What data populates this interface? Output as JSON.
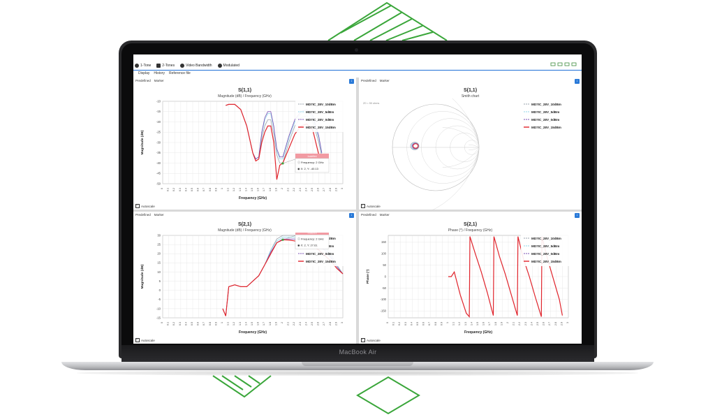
{
  "laptop": {
    "brand_label": "MacBook Air"
  },
  "colors": {
    "accent_green": "#3aa63a",
    "trace_red": "#e0232b",
    "trace_cyan": "#8fd5e8",
    "trace_purple": "#7a4fb3",
    "trace_gray": "#9aa3ad",
    "marker_pink": "#f29aa2"
  },
  "toolbar": {
    "buttons": [
      {
        "label": "1-Tone",
        "icon": "tone-icon"
      },
      {
        "label": "2-Tones",
        "icon": "tones-icon"
      },
      {
        "label": "Video Bandwidth",
        "icon": "video-bandwidth-icon"
      },
      {
        "label": "Modulated",
        "icon": "modulated-icon"
      }
    ]
  },
  "menu": {
    "items": [
      "Display",
      "History",
      "Reference file"
    ]
  },
  "panels": [
    {
      "tabs": [
        "Predefined",
        "Marker"
      ],
      "title": "S(1,1)",
      "subtitle": "Magnitude (dB) / Frequency (GHz)",
      "xlabel": "Frequency (GHz)",
      "ylabel": "Magnitude (dB)",
      "autoscale": "Autoscale",
      "marker": {
        "name": "Indéfini",
        "freq": "Frequency: 2 GHz",
        "xy": "X: 2, Y: -40.13"
      }
    },
    {
      "tabs": [
        "Predefined",
        "Marker"
      ],
      "title": "S(1,1)",
      "subtitle": "Smith chart",
      "corner_note": "Z0 = 50 ohms",
      "autoscale": "Autoscale"
    },
    {
      "tabs": [
        "Predefined",
        "Marker"
      ],
      "title": "S(2,1)",
      "subtitle": "Magnitude (dB) / Frequency (GHz)",
      "xlabel": "Frequency (GHz)",
      "ylabel": "Magnitude (dB)",
      "autoscale": "Autoscale",
      "marker": {
        "name": "Indéfini",
        "freq": "Frequency: 2 GHz",
        "xy": "X: 2, Y: 27.61"
      }
    },
    {
      "tabs": [
        "Predefined",
        "Marker"
      ],
      "title": "S(2,1)",
      "subtitle": "Phase (°) / Frequency (GHz)",
      "xlabel": "Frequency (GHz)",
      "ylabel": "Phase (°)",
      "autoscale": "Autoscale"
    }
  ],
  "legend": [
    "MD7IC_28V_10dBm",
    "MD7IC_28V_5dBm",
    "MD7IC_28V_0dBm",
    "MD7IC_28V_15dBm"
  ],
  "chart_data": [
    {
      "type": "line",
      "title": "S(1,1)",
      "subtitle": "Magnitude (dB) / Frequency (GHz)",
      "xlabel": "Frequency (GHz)",
      "ylabel": "Magnitude (dB)",
      "xlim": [
        0,
        3
      ],
      "ylim": [
        -50,
        -10
      ],
      "xticks": [
        0,
        0.1,
        0.2,
        0.3,
        0.4,
        0.5,
        0.6,
        0.7,
        0.8,
        0.9,
        1,
        1.1,
        1.2,
        1.3,
        1.4,
        1.5,
        1.6,
        1.7,
        1.8,
        1.9,
        2,
        2.1,
        2.2,
        2.3,
        2.4,
        2.5,
        2.6,
        2.7,
        2.8,
        2.9,
        3
      ],
      "yticks": [
        -10,
        -15,
        -20,
        -25,
        -30,
        -35,
        -40,
        -45,
        -50
      ],
      "legend_position": "top-right",
      "series": [
        {
          "name": "MD7IC_28V_10dBm",
          "x": [
            1.05,
            1.1,
            1.2,
            1.3,
            1.4,
            1.5,
            1.55,
            1.6,
            1.65,
            1.7,
            1.75,
            1.8,
            1.85,
            1.9,
            1.95,
            2.0,
            2.1,
            2.2,
            2.3,
            2.4,
            2.5,
            2.6,
            2.65
          ],
          "y": [
            -12,
            -11.5,
            -11.5,
            -14,
            -22,
            -35,
            -38,
            -37,
            -28,
            -22,
            -19,
            -19,
            -26,
            -36,
            -40,
            -40,
            -30,
            -22,
            -18,
            -17,
            -20,
            -30,
            -37
          ]
        },
        {
          "name": "MD7IC_28V_5dBm",
          "x": [
            1.05,
            1.1,
            1.2,
            1.3,
            1.4,
            1.5,
            1.55,
            1.6,
            1.65,
            1.7,
            1.75,
            1.8,
            1.85,
            1.9,
            1.95,
            2.0,
            2.1,
            2.2,
            2.3,
            2.4,
            2.5,
            2.6,
            2.65
          ],
          "y": [
            -12,
            -11.5,
            -11.5,
            -14,
            -22,
            -35,
            -38,
            -37,
            -26,
            -19,
            -16,
            -16,
            -23,
            -34,
            -38,
            -38,
            -28,
            -20,
            -16,
            -15,
            -18,
            -28,
            -36
          ]
        },
        {
          "name": "MD7IC_28V_0dBm",
          "x": [
            1.05,
            1.1,
            1.2,
            1.3,
            1.4,
            1.5,
            1.55,
            1.6,
            1.65,
            1.7,
            1.75,
            1.8,
            1.85,
            1.9,
            1.95,
            2.0,
            2.1,
            2.2,
            2.3,
            2.4,
            2.5,
            2.6,
            2.65
          ],
          "y": [
            -12,
            -11.5,
            -11.5,
            -14,
            -22,
            -35,
            -38,
            -37,
            -25,
            -18,
            -15,
            -15,
            -22,
            -33,
            -37,
            -37,
            -27,
            -19,
            -15,
            -14,
            -17,
            -27,
            -35
          ]
        },
        {
          "name": "MD7IC_28V_15dBm",
          "x": [
            1.05,
            1.1,
            1.2,
            1.3,
            1.4,
            1.5,
            1.55,
            1.6,
            1.65,
            1.7,
            1.75,
            1.8,
            1.85,
            1.9,
            1.95,
            2.0,
            2.1,
            2.2,
            2.3,
            2.4,
            2.5,
            2.6,
            2.65
          ],
          "y": [
            -12,
            -11.5,
            -11.5,
            -14,
            -22,
            -35,
            -39,
            -38,
            -30,
            -25,
            -22,
            -22,
            -30,
            -48,
            -41,
            -40,
            -33,
            -26,
            -22,
            -21,
            -24,
            -36,
            -42
          ]
        }
      ]
    },
    {
      "type": "scatter",
      "title": "S(1,1)",
      "subtitle": "Smith chart",
      "legend_position": "top-right",
      "series": [
        {
          "name": "MD7IC_28V_10dBm"
        },
        {
          "name": "MD7IC_28V_5dBm"
        },
        {
          "name": "MD7IC_28V_0dBm"
        },
        {
          "name": "MD7IC_28V_15dBm"
        }
      ]
    },
    {
      "type": "line",
      "title": "S(2,1)",
      "subtitle": "Magnitude (dB) / Frequency (GHz)",
      "xlabel": "Frequency (GHz)",
      "ylabel": "Magnitude (dB)",
      "xlim": [
        0,
        3
      ],
      "ylim": [
        -15,
        30
      ],
      "xticks": [
        0,
        0.1,
        0.2,
        0.3,
        0.4,
        0.5,
        0.6,
        0.7,
        0.8,
        0.9,
        1,
        1.1,
        1.2,
        1.3,
        1.4,
        1.5,
        1.6,
        1.7,
        1.8,
        1.9,
        2,
        2.1,
        2.2,
        2.3,
        2.4,
        2.5,
        2.6,
        2.7,
        2.8,
        2.9,
        3
      ],
      "yticks": [
        30,
        25,
        20,
        15,
        10,
        5,
        0,
        -5,
        -10,
        -15
      ],
      "legend_position": "top-right",
      "series": [
        {
          "name": "MD7IC_28V_10dBm",
          "x": [
            1.0,
            1.05,
            1.1,
            1.2,
            1.3,
            1.4,
            1.5,
            1.6,
            1.7,
            1.8,
            1.9,
            2.0,
            2.1,
            2.2,
            2.3,
            2.4,
            2.5,
            2.6,
            2.7,
            2.8,
            2.9,
            3.0
          ],
          "y": [
            -10,
            -14,
            2,
            3,
            2,
            2,
            5,
            8,
            14,
            22,
            28,
            30,
            30,
            30,
            29,
            28,
            27,
            26,
            24,
            20,
            14,
            9
          ]
        },
        {
          "name": "MD7IC_28V_5dBm",
          "x": [
            1.0,
            1.05,
            1.1,
            1.2,
            1.3,
            1.4,
            1.5,
            1.6,
            1.7,
            1.8,
            1.9,
            2.0,
            2.1,
            2.2,
            2.3,
            2.4,
            2.5,
            2.6,
            2.7,
            2.8,
            2.9,
            3.0
          ],
          "y": [
            -10,
            -14,
            2,
            3,
            2,
            2,
            5,
            8,
            14,
            22,
            27,
            29,
            29,
            29,
            28,
            27,
            26,
            25,
            23,
            19,
            13,
            9
          ]
        },
        {
          "name": "MD7IC_28V_0dBm",
          "x": [
            1.0,
            1.05,
            1.1,
            1.2,
            1.3,
            1.4,
            1.5,
            1.6,
            1.7,
            1.8,
            1.9,
            2.0,
            2.1,
            2.2,
            2.3,
            2.4,
            2.5,
            2.6,
            2.7,
            2.8,
            2.9,
            3.0
          ],
          "y": [
            -10,
            -14,
            2,
            3,
            2,
            2,
            5,
            8,
            14,
            21,
            26,
            28,
            28,
            28,
            27,
            26,
            25,
            24,
            22,
            18,
            13,
            9
          ]
        },
        {
          "name": "MD7IC_28V_15dBm",
          "x": [
            1.0,
            1.05,
            1.1,
            1.2,
            1.3,
            1.4,
            1.5,
            1.6,
            1.7,
            1.8,
            1.9,
            2.0,
            2.1,
            2.2,
            2.3,
            2.4,
            2.5,
            2.6,
            2.7,
            2.8,
            2.9,
            3.0
          ],
          "y": [
            -10,
            -14,
            2,
            3,
            2,
            2,
            5,
            8,
            14,
            20,
            26,
            27.6,
            27.5,
            27,
            26,
            25,
            24,
            22,
            19,
            16,
            12,
            9
          ]
        }
      ]
    },
    {
      "type": "line",
      "title": "S(2,1)",
      "subtitle": "Phase (°) / Frequency (GHz)",
      "xlabel": "Frequency (GHz)",
      "ylabel": "Phase (°)",
      "xlim": [
        0,
        3
      ],
      "ylim": [
        -180,
        180
      ],
      "xticks": [
        0,
        0.1,
        0.2,
        0.3,
        0.4,
        0.5,
        0.6,
        0.7,
        0.8,
        0.9,
        1,
        1.1,
        1.2,
        1.3,
        1.4,
        1.5,
        1.6,
        1.7,
        1.8,
        1.9,
        2,
        2.1,
        2.2,
        2.3,
        2.4,
        2.5,
        2.6,
        2.7,
        2.8,
        2.9,
        3
      ],
      "yticks": [
        150,
        100,
        50,
        0,
        -50,
        -100,
        -150
      ],
      "legend_position": "top-right",
      "series": [
        {
          "name": "MD7IC_28V_15dBm",
          "x": [
            1.0,
            1.05,
            1.1,
            1.2,
            1.3,
            1.35,
            1.36,
            1.45,
            1.55,
            1.65,
            1.75,
            1.76,
            1.85,
            1.95,
            2.05,
            2.15,
            2.16,
            2.25,
            2.35,
            2.45,
            2.55,
            2.56,
            2.65,
            2.75,
            2.85,
            2.9
          ],
          "y": [
            0,
            0,
            20,
            -80,
            -160,
            -175,
            175,
            100,
            20,
            -70,
            -170,
            175,
            90,
            10,
            -80,
            -170,
            175,
            80,
            0,
            -90,
            -175,
            175,
            80,
            -10,
            -100,
            -170
          ]
        }
      ]
    }
  ]
}
